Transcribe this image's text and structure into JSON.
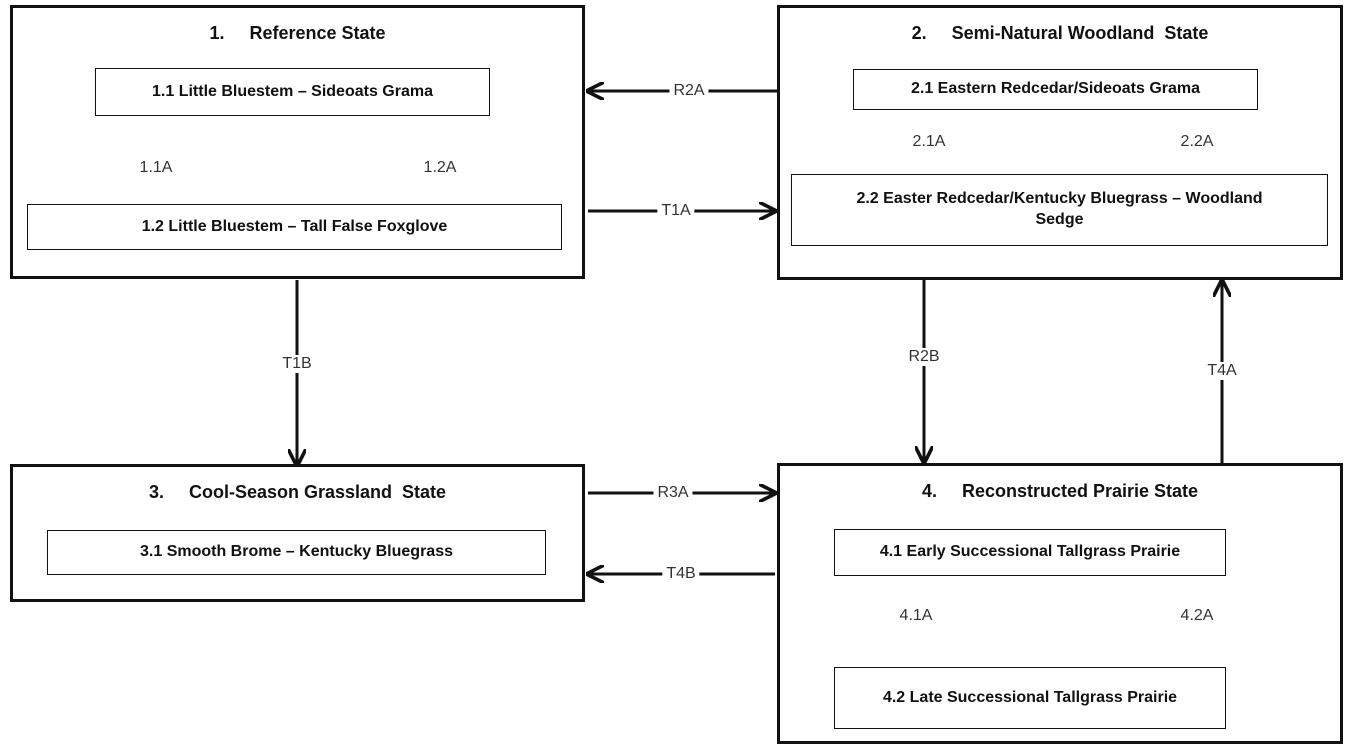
{
  "states": {
    "s1": {
      "title": "1.     Reference State"
    },
    "s2": {
      "title": "2.     Semi-Natural Woodland  State"
    },
    "s3": {
      "title": "3.     Cool-Season Grassland  State"
    },
    "s4": {
      "title": "4.     Reconstructed Prairie State"
    }
  },
  "communities": {
    "c1_1": "1.1 Little Bluestem – Sideoats Grama",
    "c1_2": "1.2 Little Bluestem – Tall False Foxglove",
    "c2_1": "2.1  Eastern Redcedar/Sideoats Grama",
    "c2_2": "2.2  Easter Redcedar/Kentucky Bluegrass – Woodland Sedge",
    "c3_1": "3.1 Smooth Brome – Kentucky Bluegrass",
    "c4_1": "4.1 Early Successional Tallgrass Prairie",
    "c4_2": "4.2 Late Successional Tallgrass Prairie"
  },
  "transitions": {
    "p1_1A": "1.1A",
    "p1_2A": "1.2A",
    "p2_1A": "2.1A",
    "p2_2A": "2.2A",
    "p4_1A": "4.1A",
    "p4_2A": "4.2A",
    "R2A": "R2A",
    "T1A": "T1A",
    "T1B": "T1B",
    "R2B": "R2B",
    "T4A": "T4A",
    "R3A": "R3A",
    "T4B": "T4B"
  }
}
